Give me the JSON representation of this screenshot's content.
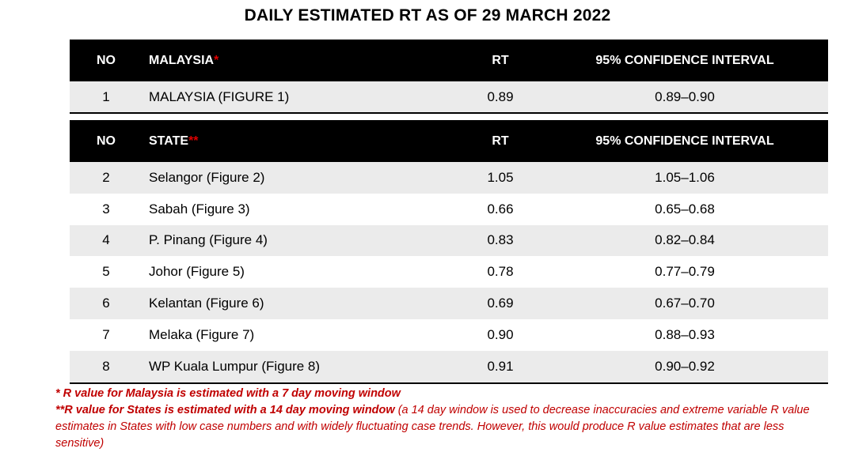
{
  "title": "DAILY ESTIMATED RT AS OF 29 MARCH 2022",
  "malaysia_table": {
    "headers": {
      "no": "NO",
      "name": "MALAYSIA",
      "name_mark": "*",
      "rt": "RT",
      "ci": "95% CONFIDENCE INTERVAL"
    },
    "rows": [
      {
        "no": "1",
        "name": "MALAYSIA (FIGURE 1)",
        "rt": "0.89",
        "ci": "0.89–0.90"
      }
    ]
  },
  "state_table": {
    "headers": {
      "no": "NO",
      "name": "STATE",
      "name_mark": "**",
      "rt": "RT",
      "ci": "95% CONFIDENCE INTERVAL"
    },
    "rows": [
      {
        "no": "2",
        "name": "Selangor (Figure 2)",
        "rt": "1.05",
        "ci": "1.05–1.06"
      },
      {
        "no": "3",
        "name": "Sabah (Figure 3)",
        "rt": "0.66",
        "ci": "0.65–0.68"
      },
      {
        "no": "4",
        "name": "P. Pinang (Figure 4)",
        "rt": "0.83",
        "ci": "0.82–0.84"
      },
      {
        "no": "5",
        "name": "Johor (Figure 5)",
        "rt": "0.78",
        "ci": "0.77–0.79"
      },
      {
        "no": "6",
        "name": "Kelantan (Figure 6)",
        "rt": "0.69",
        "ci": "0.67–0.70"
      },
      {
        "no": "7",
        "name": "Melaka (Figure 7)",
        "rt": "0.90",
        "ci": "0.88–0.93"
      },
      {
        "no": "8",
        "name": "WP Kuala Lumpur (Figure 8)",
        "rt": "0.91",
        "ci": "0.90–0.92"
      }
    ]
  },
  "notes": {
    "note1": "*  R value for Malaysia is estimated with a 7 day moving window",
    "note2_bold": "**R value for States is estimated with a 14 day moving window",
    "note2_rest": " (a 14 day window is used to decrease inaccuracies and extreme variable R value estimates in States with low case numbers and with widely fluctuating case trends. However, this would produce R value estimates that are less sensitive)"
  }
}
